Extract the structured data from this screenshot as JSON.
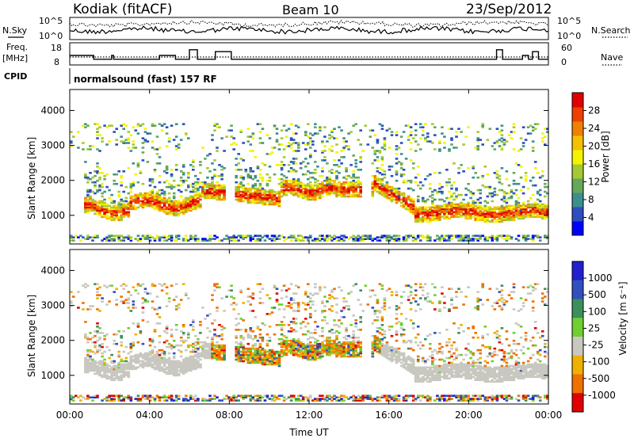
{
  "header": {
    "radar": "Kodiak (fitACF)",
    "beam": "Beam 10",
    "date": "23/Sep/2012"
  },
  "params_panel": {
    "nsky_label": "N.Sky",
    "nsearch_label": "N.Search",
    "freq_label_1": "Freq.",
    "freq_label_2": "[MHz]",
    "nave_label": "Nave",
    "cpid_label": "CPID",
    "cpid_text": "normalsound (fast) 157 RF",
    "noise_ticks_left": [
      "10^5",
      "10^0"
    ],
    "noise_ticks_right": [
      "10^5",
      "10^0"
    ],
    "freq_ticks": [
      "18",
      "8"
    ],
    "nave_ticks": [
      "60",
      "0"
    ],
    "freq_steps": [
      [
        0,
        13
      ],
      [
        1.2,
        11
      ],
      [
        2.1,
        13
      ],
      [
        2.2,
        11
      ],
      [
        4.5,
        13
      ],
      [
        5.3,
        11
      ],
      [
        6.0,
        16
      ],
      [
        6.4,
        11
      ],
      [
        7.3,
        15
      ],
      [
        8.1,
        11
      ],
      [
        21.4,
        16
      ],
      [
        21.7,
        11
      ],
      [
        22.7,
        13
      ],
      [
        23.0,
        11
      ],
      [
        23.2,
        15
      ],
      [
        23.5,
        11
      ],
      [
        24,
        11
      ]
    ],
    "nave_level": 15
  },
  "chart_data": [
    {
      "type": "heatmap",
      "name": "Power",
      "xlabel": "",
      "ylabel": "Slant Range [km]",
      "xlim": [
        0,
        24
      ],
      "ylim": [
        180,
        4600
      ],
      "yticks": [
        1000,
        2000,
        3000,
        4000
      ],
      "colorbar_label": "Power [dB]",
      "colorbar_ticks": [
        "4",
        "8",
        "12",
        "16",
        "20",
        "24",
        "28"
      ],
      "colorbar_range": [
        0,
        30
      ],
      "colors": [
        "#0000ff",
        "#2b4fbf",
        "#3c8f8f",
        "#66a85a",
        "#a6c832",
        "#f4f400",
        "#f5c000",
        "#f08000",
        "#ee4000",
        "#e00000"
      ]
    },
    {
      "type": "heatmap",
      "name": "Velocity",
      "xlabel": "Time UT",
      "ylabel": "Slant Range [km]",
      "xlim": [
        0,
        24
      ],
      "ylim": [
        180,
        4600
      ],
      "yticks": [
        1000,
        2000,
        3000,
        4000
      ],
      "xticks": [
        "00:00",
        "04:00",
        "08:00",
        "12:00",
        "16:00",
        "20:00",
        "00:00"
      ],
      "colorbar_label": "Velocity [m s⁻¹]",
      "colorbar_ticks": [
        "1000",
        "500",
        "100",
        "25",
        "-25",
        "-100",
        "-500",
        "-1000"
      ],
      "colors": [
        "#2020d0",
        "#3050c0",
        "#3c8f5a",
        "#6fcf30",
        "#c8c8c0",
        "#f0b000",
        "#f07000",
        "#e00000"
      ]
    }
  ]
}
